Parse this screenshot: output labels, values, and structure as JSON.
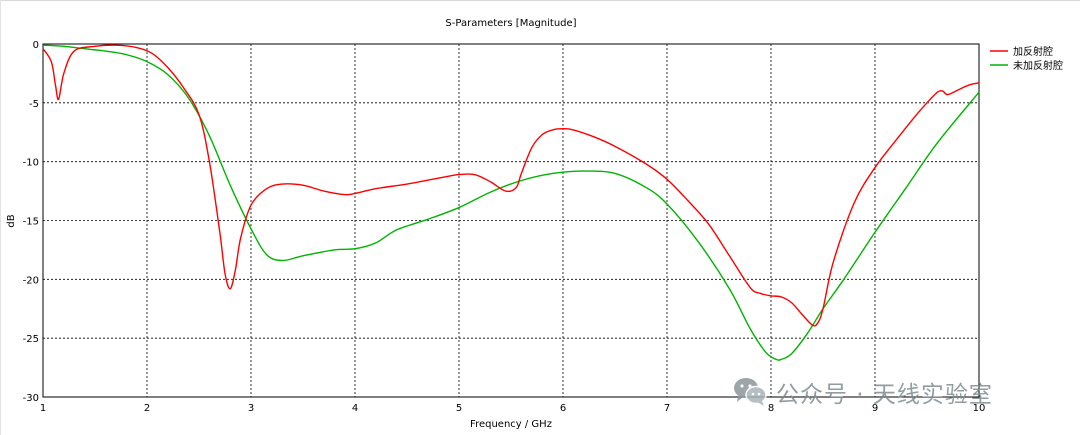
{
  "chart_data": {
    "type": "line",
    "title": "S-Parameters [Magnitude]",
    "xlabel": "Frequency / GHz",
    "ylabel": "dB",
    "xlim": [
      1,
      10
    ],
    "ylim": [
      -30,
      0
    ],
    "x_ticks": [
      "1",
      "2",
      "3",
      "4",
      "5",
      "6",
      "7",
      "8",
      "9",
      "10"
    ],
    "y_ticks": [
      "0",
      "-5",
      "-10",
      "-15",
      "-20",
      "-25",
      "-30"
    ],
    "grid": true,
    "legend_position": "top-right",
    "series": [
      {
        "name": "加反射腔",
        "color": "#ff0000",
        "x": [
          1.0,
          1.08,
          1.12,
          1.15,
          1.2,
          1.3,
          1.5,
          1.7,
          1.9,
          2.05,
          2.2,
          2.35,
          2.5,
          2.6,
          2.7,
          2.75,
          2.8,
          2.85,
          2.9,
          3.0,
          3.15,
          3.3,
          3.5,
          3.7,
          3.9,
          4.0,
          4.2,
          4.5,
          4.8,
          5.0,
          5.15,
          5.3,
          5.45,
          5.55,
          5.6,
          5.7,
          5.8,
          5.9,
          6.0,
          6.1,
          6.3,
          6.5,
          6.8,
          7.0,
          7.2,
          7.4,
          7.6,
          7.8,
          7.9,
          8.0,
          8.1,
          8.2,
          8.3,
          8.4,
          8.45,
          8.5,
          8.6,
          8.8,
          9.0,
          9.2,
          9.4,
          9.5,
          9.6,
          9.65,
          9.7,
          9.8,
          9.9,
          10.0
        ],
        "y": [
          -0.4,
          -1.5,
          -3.5,
          -4.7,
          -2.5,
          -0.6,
          -0.2,
          -0.1,
          -0.3,
          -0.8,
          -2.0,
          -3.7,
          -6.0,
          -10.0,
          -16.0,
          -19.5,
          -20.8,
          -19.2,
          -16.5,
          -13.7,
          -12.3,
          -11.9,
          -12.0,
          -12.5,
          -12.8,
          -12.7,
          -12.3,
          -11.9,
          -11.4,
          -11.1,
          -11.1,
          -11.7,
          -12.5,
          -12.2,
          -11.0,
          -8.8,
          -7.7,
          -7.3,
          -7.2,
          -7.3,
          -7.9,
          -8.7,
          -10.2,
          -11.5,
          -13.3,
          -15.3,
          -18.0,
          -20.7,
          -21.2,
          -21.4,
          -21.5,
          -22.0,
          -23.0,
          -23.9,
          -23.7,
          -22.5,
          -18.5,
          -13.5,
          -10.5,
          -8.2,
          -6.0,
          -5.0,
          -4.1,
          -4.0,
          -4.3,
          -3.9,
          -3.5,
          -3.3
        ]
      },
      {
        "name": "未加反射腔",
        "color": "#00b400",
        "x": [
          1.0,
          1.2,
          1.4,
          1.5,
          1.6,
          1.8,
          2.0,
          2.2,
          2.4,
          2.6,
          2.8,
          3.0,
          3.15,
          3.3,
          3.5,
          3.8,
          4.0,
          4.2,
          4.4,
          4.7,
          5.0,
          5.3,
          5.6,
          5.9,
          6.2,
          6.5,
          6.8,
          7.0,
          7.3,
          7.6,
          7.8,
          7.95,
          8.05,
          8.1,
          8.2,
          8.35,
          8.5,
          8.7,
          9.0,
          9.3,
          9.6,
          10.0
        ],
        "y": [
          -0.1,
          -0.2,
          -0.4,
          -0.5,
          -0.6,
          -0.9,
          -1.5,
          -2.6,
          -4.6,
          -7.8,
          -12.0,
          -15.7,
          -17.9,
          -18.4,
          -18.0,
          -17.5,
          -17.4,
          -16.9,
          -15.8,
          -14.9,
          -13.9,
          -12.6,
          -11.6,
          -11.0,
          -10.8,
          -11.0,
          -12.2,
          -13.6,
          -16.8,
          -20.8,
          -24.2,
          -26.2,
          -26.8,
          -26.8,
          -26.3,
          -24.6,
          -22.5,
          -20.0,
          -16.0,
          -12.2,
          -8.4,
          -4.1
        ]
      }
    ]
  },
  "watermark": {
    "text": "公众号 · 天线实验室",
    "icon": "wechat-logo-icon"
  }
}
